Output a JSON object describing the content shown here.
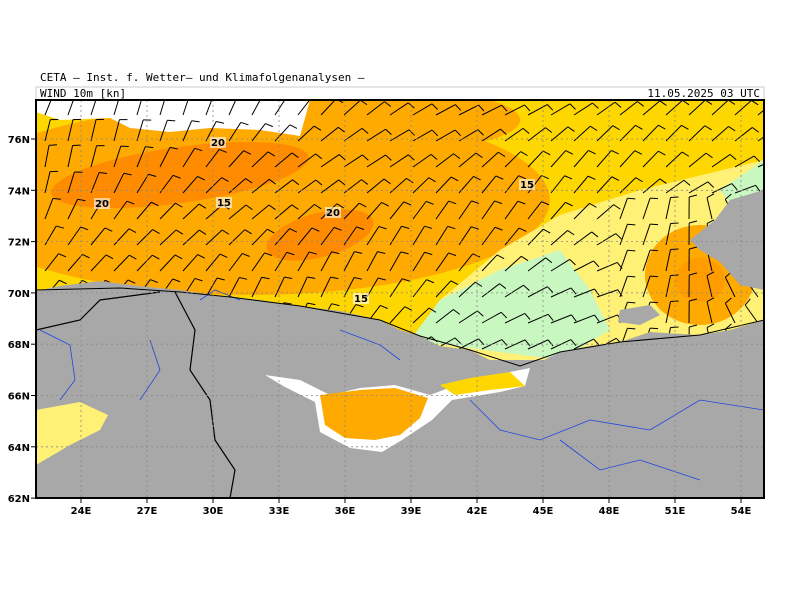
{
  "header": {
    "title": "CETA — Inst. f. Wetter— und Klimafolgenanalysen —",
    "field": "WIND 10m [kn]",
    "date": "11.05.2025 03 UTC"
  },
  "axes": {
    "lon_labels": [
      "24E",
      "27E",
      "30E",
      "33E",
      "36E",
      "39E",
      "42E",
      "45E",
      "48E",
      "51E",
      "54E"
    ],
    "lat_labels": [
      "76N",
      "74N",
      "72N",
      "70N",
      "68N",
      "66N",
      "64N",
      "62N"
    ]
  },
  "contour_labels": [
    "20",
    "20",
    "15",
    "20",
    "15",
    "15"
  ]
}
